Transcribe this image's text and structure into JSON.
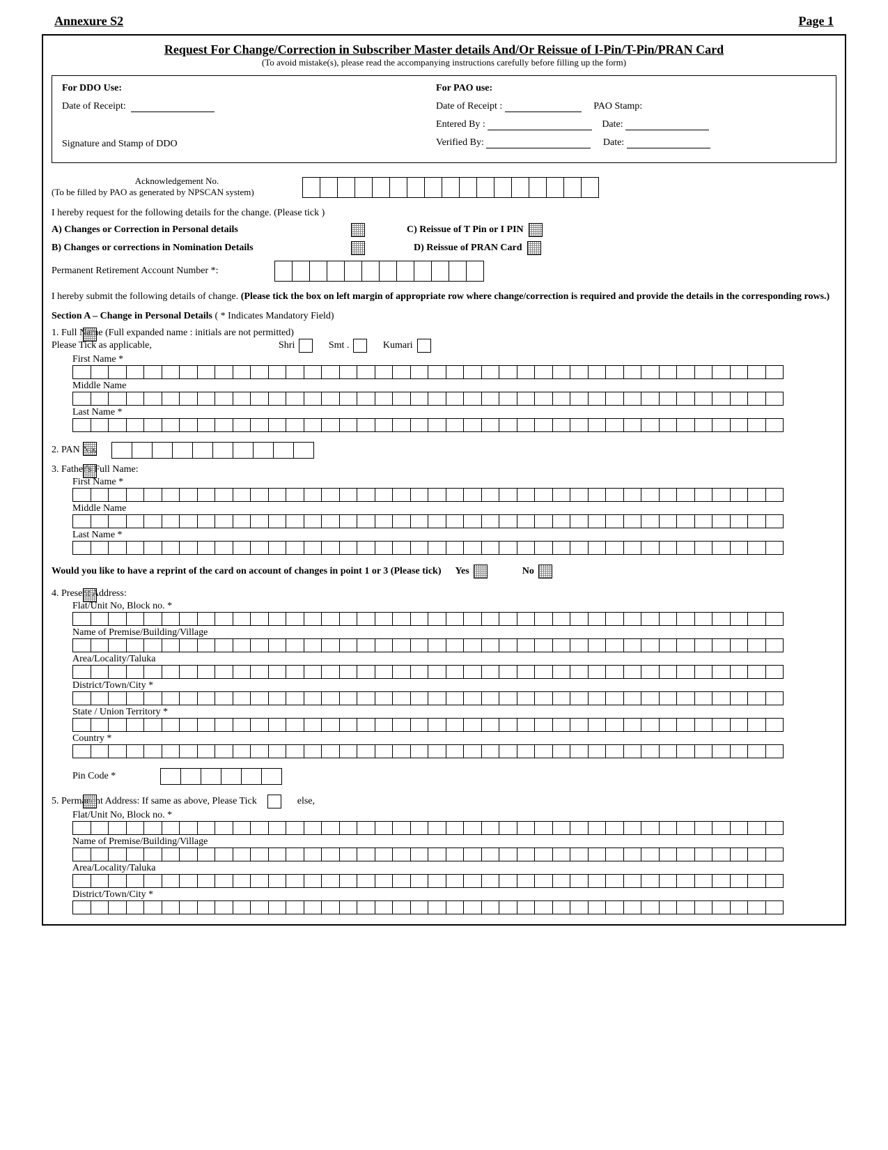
{
  "header": {
    "annex": "Annexure S2",
    "page": "Page 1"
  },
  "title": "Request For Change/Correction in Subscriber Master details And/Or Reissue of I-Pin/T-Pin/PRAN Card",
  "subtitle": "(To avoid mistake(s), please read the accompanying instructions carefully before filling up the form)",
  "ddo": {
    "heading": "For DDO Use:",
    "date_receipt": "Date of Receipt:",
    "sig_stamp": "Signature and Stamp of DDO"
  },
  "pao": {
    "heading": "For PAO use:",
    "date_receipt": "Date of Receipt :",
    "pao_stamp": "PAO Stamp:",
    "entered_by": "Entered By :",
    "date1": "Date:",
    "verified_by": "Verified By:",
    "date2": "Date:"
  },
  "ack": {
    "label": "Acknowledgement No.",
    "note": "(To be filled by PAO as generated by NPSCAN system)",
    "cell_count": 17
  },
  "request_line": "I hereby request for the following details for the change.  (Please tick )",
  "options": {
    "a": "A) Changes or Correction in Personal details",
    "b": "B)  Changes or corrections in Nomination Details",
    "c": "C)  Reissue of  T Pin or I PIN",
    "d": "D)  Reissue of PRAN Card"
  },
  "pran": {
    "label": "Permanent Retirement Account Number  *:",
    "cell_count": 12
  },
  "submit_line": "I hereby submit the following details of change. (Please tick the box on left margin of appropriate row where change/correction is required and provide the details in the corresponding rows.)",
  "sectionA": {
    "heading_a": "Section  A – Change in Personal Details",
    "heading_b": " ( * Indicates Mandatory Field)",
    "q1": {
      "line1": "1. Full Name (Full expanded name : initials are not permitted)",
      "line2": "Please Tick   as applicable,",
      "shri": "Shri",
      "smt": "Smt .",
      "kumari": "Kumari",
      "first": "First Name *",
      "middle": "Middle Name",
      "last": "Last Name *",
      "cells": 40
    },
    "q2": {
      "label": "2. PAN No.",
      "cells": 10
    },
    "q3": {
      "label": "3.  Father's Full Name:",
      "first": "First Name *",
      "middle": "Middle Name",
      "last": "Last Name *",
      "cells": 40
    },
    "reprint": {
      "text": "Would you like to have a reprint of the card on account of changes in point 1 or 3 (Please tick)",
      "yes": "Yes",
      "no": "No"
    },
    "q4": {
      "label": "4. Present Address:",
      "flat": "Flat/Unit No, Block no. *",
      "premise": "Name of Premise/Building/Village",
      "area": "Area/Locality/Taluka",
      "district": "District/Town/City *",
      "state": "State / Union Territory *",
      "country": "Country *",
      "pin": "Pin Code *",
      "cells": 40,
      "pin_cells": 6
    },
    "q5": {
      "label": "5. Permanent Address:    If same as above, Please Tick",
      "else": "else,",
      "flat": "Flat/Unit No, Block no. *",
      "premise": "Name of Premise/Building/Village",
      "area": "Area/Locality/Taluka",
      "district": "District/Town/City *",
      "cells": 40
    }
  }
}
